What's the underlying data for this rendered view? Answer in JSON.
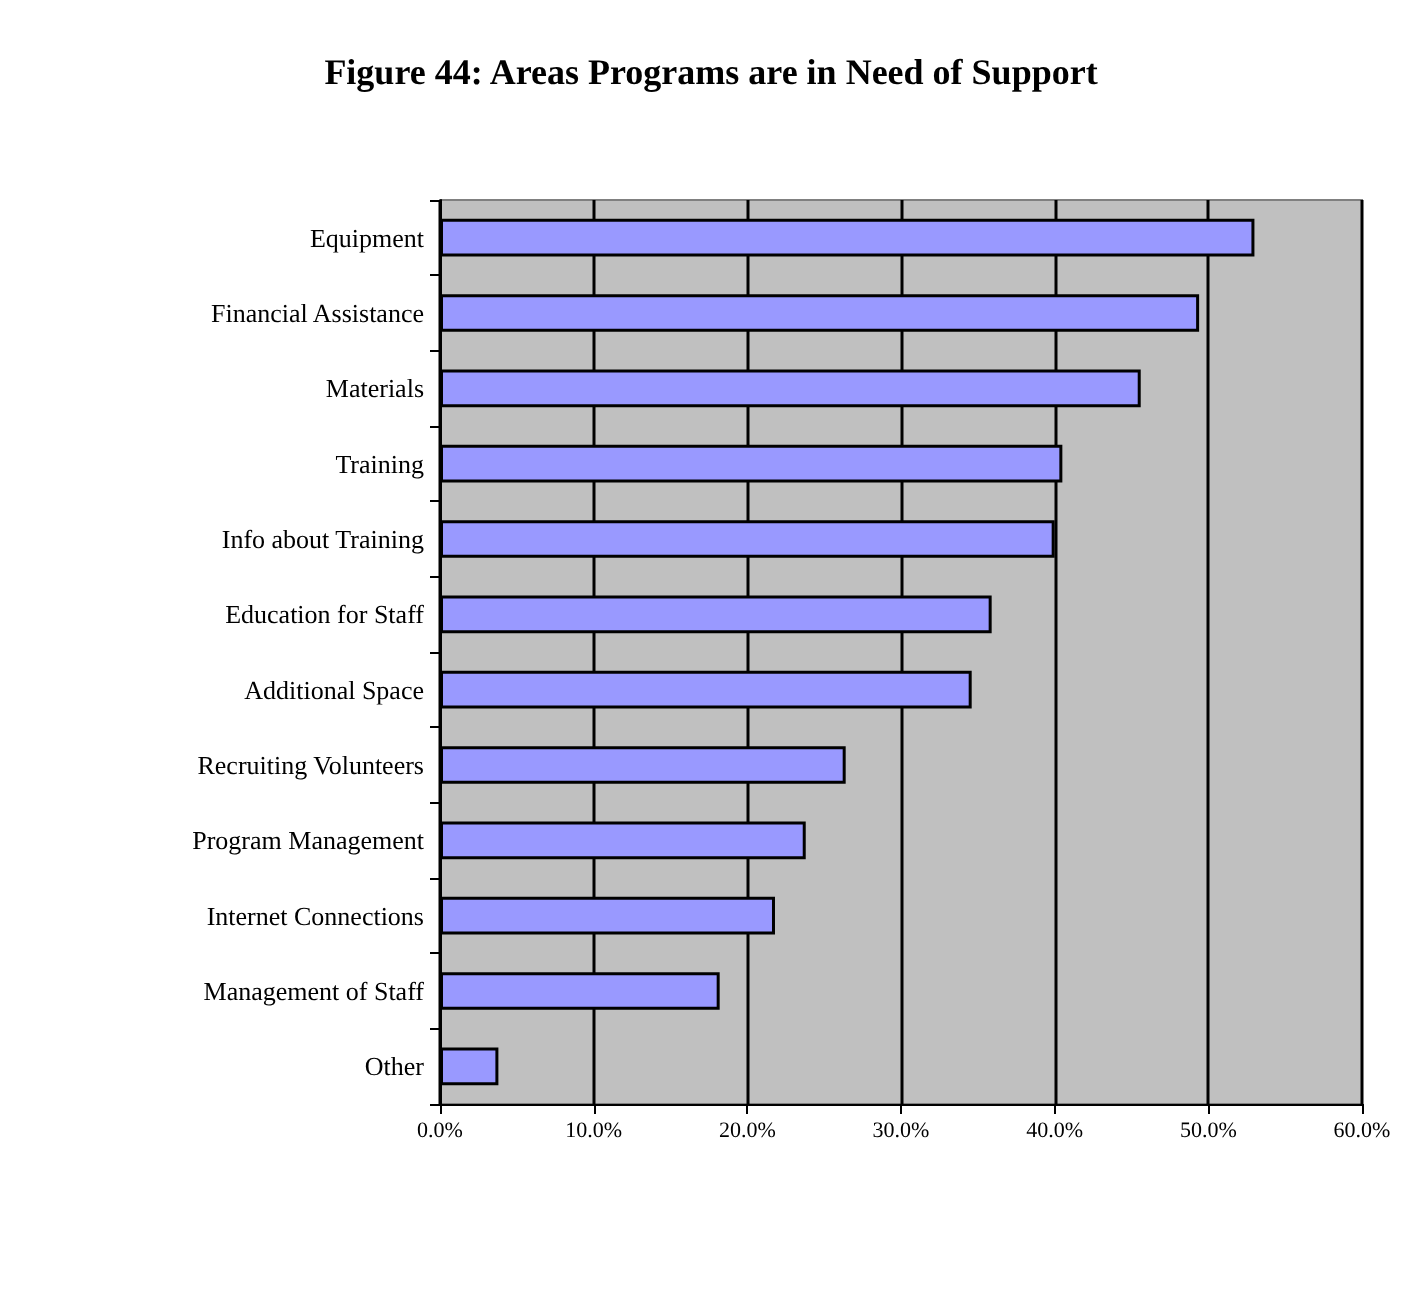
{
  "chart_data": {
    "type": "bar",
    "orientation": "horizontal",
    "title": "Figure 44: Areas Programs are in Need of Support",
    "categories": [
      "Equipment",
      "Financial Assistance",
      "Materials",
      "Training",
      "Info about Training",
      "Education for Staff",
      "Additional Space",
      "Recruiting Volunteers",
      "Program Management",
      "Internet Connections",
      "Management of Staff",
      "Other"
    ],
    "values": [
      53.0,
      49.4,
      45.6,
      40.5,
      40.0,
      35.9,
      34.6,
      26.4,
      23.8,
      21.8,
      18.2,
      3.8
    ],
    "color": "#9999ff",
    "xlim": [
      0,
      60
    ],
    "xticks": [
      {
        "value": 0,
        "label": "0.0%"
      },
      {
        "value": 10,
        "label": "10.0%"
      },
      {
        "value": 20,
        "label": "20.0%"
      },
      {
        "value": 30,
        "label": "30.0%"
      },
      {
        "value": 40,
        "label": "40.0%"
      },
      {
        "value": 50,
        "label": "50.0%"
      },
      {
        "value": 60,
        "label": "60.0%"
      }
    ],
    "grid": "x"
  }
}
